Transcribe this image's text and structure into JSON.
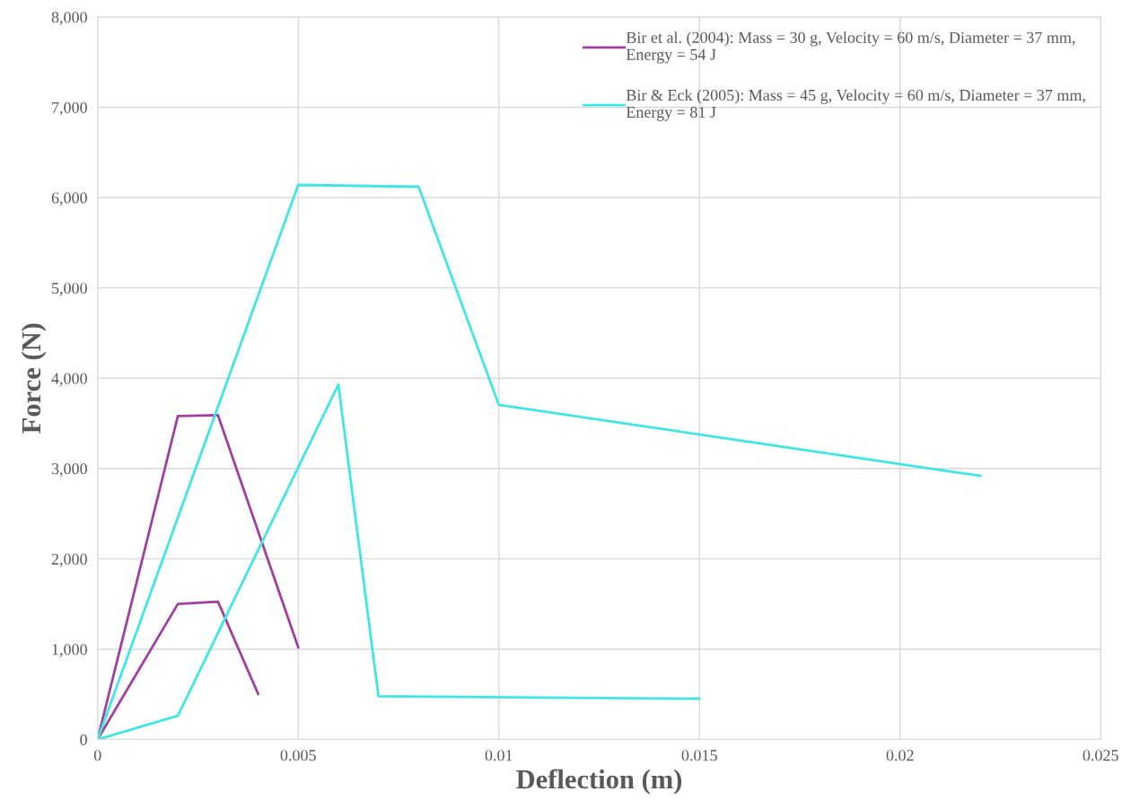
{
  "chart_data": {
    "type": "line",
    "xlabel": "Deflection (m)",
    "ylabel": "Force (N)",
    "xlim": [
      0,
      0.025
    ],
    "xticks": [
      0,
      0.005,
      0.01,
      0.015,
      0.02,
      0.025
    ],
    "ylim": [
      0,
      8000
    ],
    "yticks": [
      {
        "value": 0,
        "label": "0"
      },
      {
        "value": 1000,
        "label": "1,000"
      },
      {
        "value": 2000,
        "label": "2,000"
      },
      {
        "value": 3000,
        "label": "3,000"
      },
      {
        "value": 4000,
        "label": "4,000"
      },
      {
        "value": 5000,
        "label": "5,000"
      },
      {
        "value": 6000,
        "label": "6,000"
      },
      {
        "value": 7000,
        "label": "7,000"
      },
      {
        "value": 8000,
        "label": "8,000"
      }
    ],
    "grid": true,
    "legend": "top right",
    "marker": "none",
    "line_style": "solid",
    "series": [
      {
        "name": "Bir et al. (2004): Mass = 30 g, Velocity = 60 m/s, Diameter = 37 mm, Energy = 54 J",
        "color": "#a33ea1",
        "x": [
          0,
          0.002,
          0.003,
          0.005
        ],
        "values": [
          0,
          3580,
          3590,
          1020
        ]
      },
      {
        "color": "#a33ea1",
        "x": [
          0,
          0.002,
          0.003,
          0.004
        ],
        "values": [
          0,
          1500,
          1525,
          505
        ]
      },
      {
        "name": "Bir & Eck (2005): Mass = 45 g, Velocity = 60 m/s, Diameter = 37 mm, Energy = 81 J",
        "color": "#3fe6e6",
        "x": [
          0,
          0.005,
          0.008,
          0.01,
          0.022
        ],
        "values": [
          0,
          6140,
          6120,
          3705,
          2918
        ]
      },
      {
        "color": "#3fe6e6",
        "x": [
          0,
          0.002,
          0.006,
          0.007,
          0.015
        ],
        "values": [
          0,
          262,
          3930,
          478,
          451
        ]
      }
    ]
  }
}
